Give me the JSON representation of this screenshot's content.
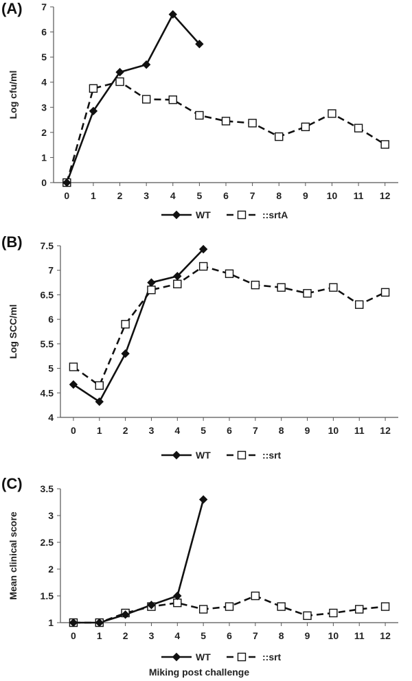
{
  "panel_labels": [
    "(A)",
    "(B)",
    "(C)"
  ],
  "shared_xlabel": "Miking post challenge",
  "colors": {
    "line": "#111111",
    "marker_fill_open": "#ffffff",
    "axis": "#555555"
  },
  "chart_data": [
    {
      "type": "line",
      "ylabel": "Log  cfu/ml",
      "ylim": [
        0,
        7
      ],
      "yticks": [
        0,
        1,
        2,
        3,
        4,
        5,
        6,
        7
      ],
      "ytick_labels": [
        "0",
        "1",
        "2",
        "3",
        "4",
        "5",
        "6",
        "7"
      ],
      "x": [
        0,
        1,
        2,
        3,
        4,
        5,
        6,
        7,
        8,
        9,
        10,
        11,
        12
      ],
      "xlim": [
        -0.5,
        12.5
      ],
      "legend_position": "bottom",
      "series": [
        {
          "name": "WT",
          "style": "solid",
          "marker": "filled-diamond",
          "x": [
            0,
            1,
            2,
            3,
            4,
            5
          ],
          "values": [
            0,
            2.85,
            4.4,
            4.7,
            6.7,
            5.52
          ]
        },
        {
          "name": "::srtA",
          "style": "dashed",
          "marker": "open-square",
          "x": [
            0,
            1,
            2,
            3,
            4,
            5,
            6,
            7,
            8,
            9,
            10,
            11,
            12
          ],
          "values": [
            0,
            3.75,
            4.02,
            3.32,
            3.3,
            2.68,
            2.45,
            2.37,
            1.83,
            2.22,
            2.75,
            2.17,
            1.52
          ]
        }
      ]
    },
    {
      "type": "line",
      "ylabel": "Log SCC/ml",
      "ylim": [
        4,
        7.5
      ],
      "yticks": [
        4,
        4.5,
        5,
        5.5,
        6,
        6.5,
        7,
        7.5
      ],
      "ytick_labels": [
        "4",
        "4.5",
        "5",
        "5.5",
        "6",
        "6.5",
        "7",
        "7.5"
      ],
      "x": [
        0,
        1,
        2,
        3,
        4,
        5,
        6,
        7,
        8,
        9,
        10,
        11,
        12
      ],
      "xlim": [
        -0.5,
        12.5
      ],
      "legend_position": "bottom",
      "series": [
        {
          "name": "WT",
          "style": "solid",
          "marker": "filled-diamond",
          "x": [
            0,
            1,
            2,
            3,
            4,
            5
          ],
          "values": [
            4.67,
            4.32,
            5.3,
            6.75,
            6.88,
            7.43
          ]
        },
        {
          "name": "::srt",
          "style": "dashed",
          "marker": "open-square",
          "x": [
            0,
            1,
            2,
            3,
            4,
            5,
            6,
            7,
            8,
            9,
            10,
            11,
            12
          ],
          "values": [
            5.03,
            4.65,
            5.9,
            6.6,
            6.72,
            7.08,
            6.93,
            6.7,
            6.65,
            6.53,
            6.65,
            6.3,
            6.55
          ]
        }
      ]
    },
    {
      "type": "line",
      "ylabel": "Mean clinical score",
      "ylim": [
        1,
        3.5
      ],
      "yticks": [
        1,
        1.5,
        2,
        2.5,
        3,
        3.5
      ],
      "ytick_labels": [
        "1",
        "1.5",
        "2",
        "2.5",
        "3",
        "3.5"
      ],
      "x": [
        0,
        1,
        2,
        3,
        4,
        5,
        6,
        7,
        8,
        9,
        10,
        11,
        12
      ],
      "xlim": [
        -0.5,
        12.5
      ],
      "xlabel": "Miking post challenge",
      "legend_position": "bottom",
      "series": [
        {
          "name": "WT",
          "style": "solid",
          "marker": "filled-diamond",
          "x": [
            0,
            1,
            2,
            3,
            4,
            5
          ],
          "values": [
            1,
            1,
            1.15,
            1.33,
            1.5,
            3.3
          ]
        },
        {
          "name": "::srt",
          "style": "dashed",
          "marker": "open-square",
          "x": [
            0,
            1,
            2,
            3,
            4,
            5,
            6,
            7,
            8,
            9,
            10,
            11,
            12
          ],
          "values": [
            1,
            1,
            1.18,
            1.3,
            1.37,
            1.25,
            1.3,
            1.5,
            1.3,
            1.13,
            1.18,
            1.25,
            1.3
          ]
        }
      ]
    }
  ]
}
